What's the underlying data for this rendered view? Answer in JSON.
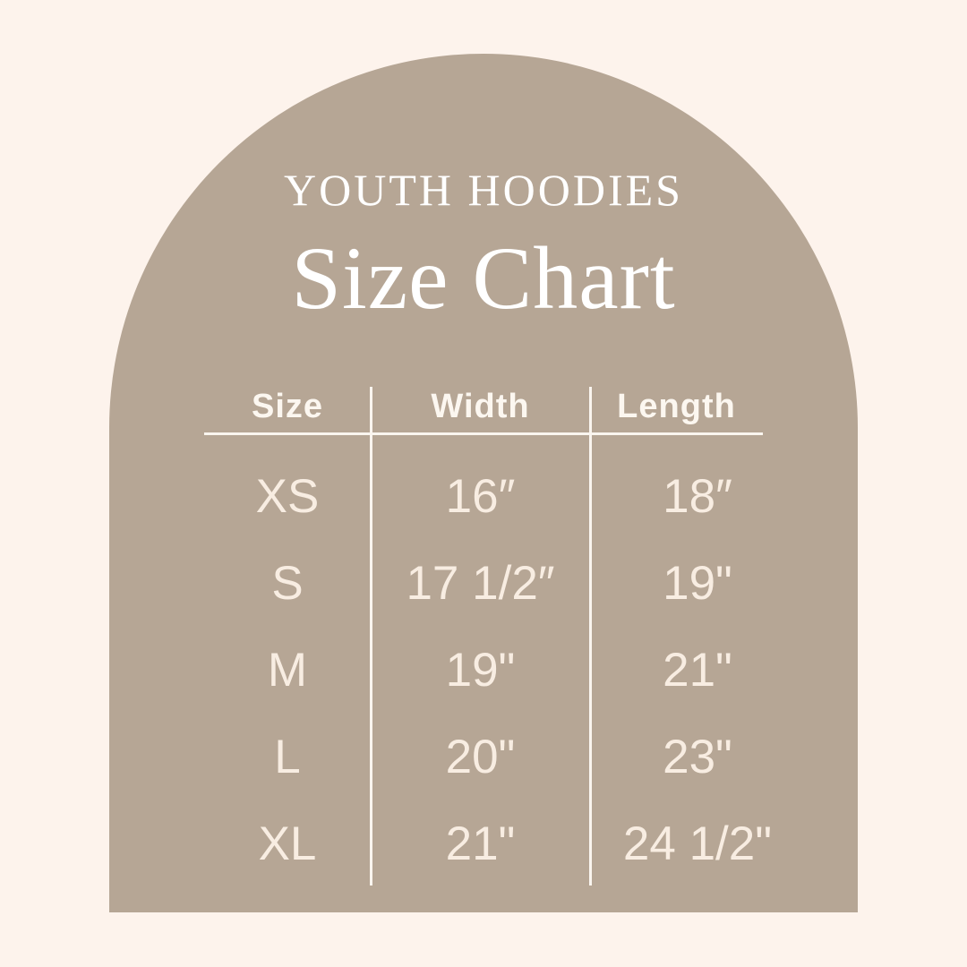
{
  "poster": {
    "kicker": "YOUTH HOODIES",
    "title": "Size Chart"
  },
  "colors": {
    "background": "#FDF3EC",
    "arch": "#B6A695",
    "title_text": "#FFFFFF",
    "table_text": "#F8EDE2",
    "rule_lines": "#FAF5EF"
  },
  "chart_data": {
    "type": "table",
    "title": "Size Chart",
    "subtitle": "YOUTH HOODIES",
    "columns": [
      "Size",
      "Width",
      "Length"
    ],
    "rows": [
      [
        "XS",
        "16″",
        "18″"
      ],
      [
        "S",
        "17 1/2″",
        "19\""
      ],
      [
        "M",
        "19\"",
        "21\""
      ],
      [
        "L",
        "20\"",
        "23\""
      ],
      [
        "XL",
        "21\"",
        "24 1/2\""
      ]
    ],
    "layout": {
      "grid": "ruled header underline with two vertical column dividers",
      "legend_position": "none"
    }
  }
}
